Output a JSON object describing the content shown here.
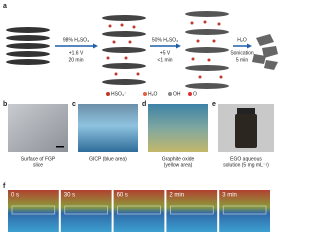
{
  "panel_a": {
    "label": "a",
    "step1": {
      "medium": "98% H₂SO₄",
      "voltage": "+1.6 V",
      "time": "20 min"
    },
    "step2": {
      "medium": "50% H₂SO₄",
      "voltage": "+5 V",
      "time": "<1 min"
    },
    "step3": {
      "medium": "H₂O",
      "process": "Sonication",
      "time": "5 min"
    },
    "legend": [
      "HSO₄⁻",
      "H₂O",
      "OH",
      "O"
    ]
  },
  "panels": [
    {
      "label": "b",
      "caption": [
        "Surface of FGP",
        "slice"
      ]
    },
    {
      "label": "c",
      "caption": [
        "GICP (blue area)"
      ]
    },
    {
      "label": "d",
      "caption": [
        "Graphite oxide",
        "(yellow area)"
      ]
    },
    {
      "label": "e",
      "caption": [
        "EGO aqueous",
        "solution (5 mg mL⁻¹)"
      ]
    }
  ],
  "panel_f": {
    "label": "f",
    "times": [
      "0 s",
      "30 s",
      "60 s",
      "2 min",
      "3 min"
    ]
  }
}
